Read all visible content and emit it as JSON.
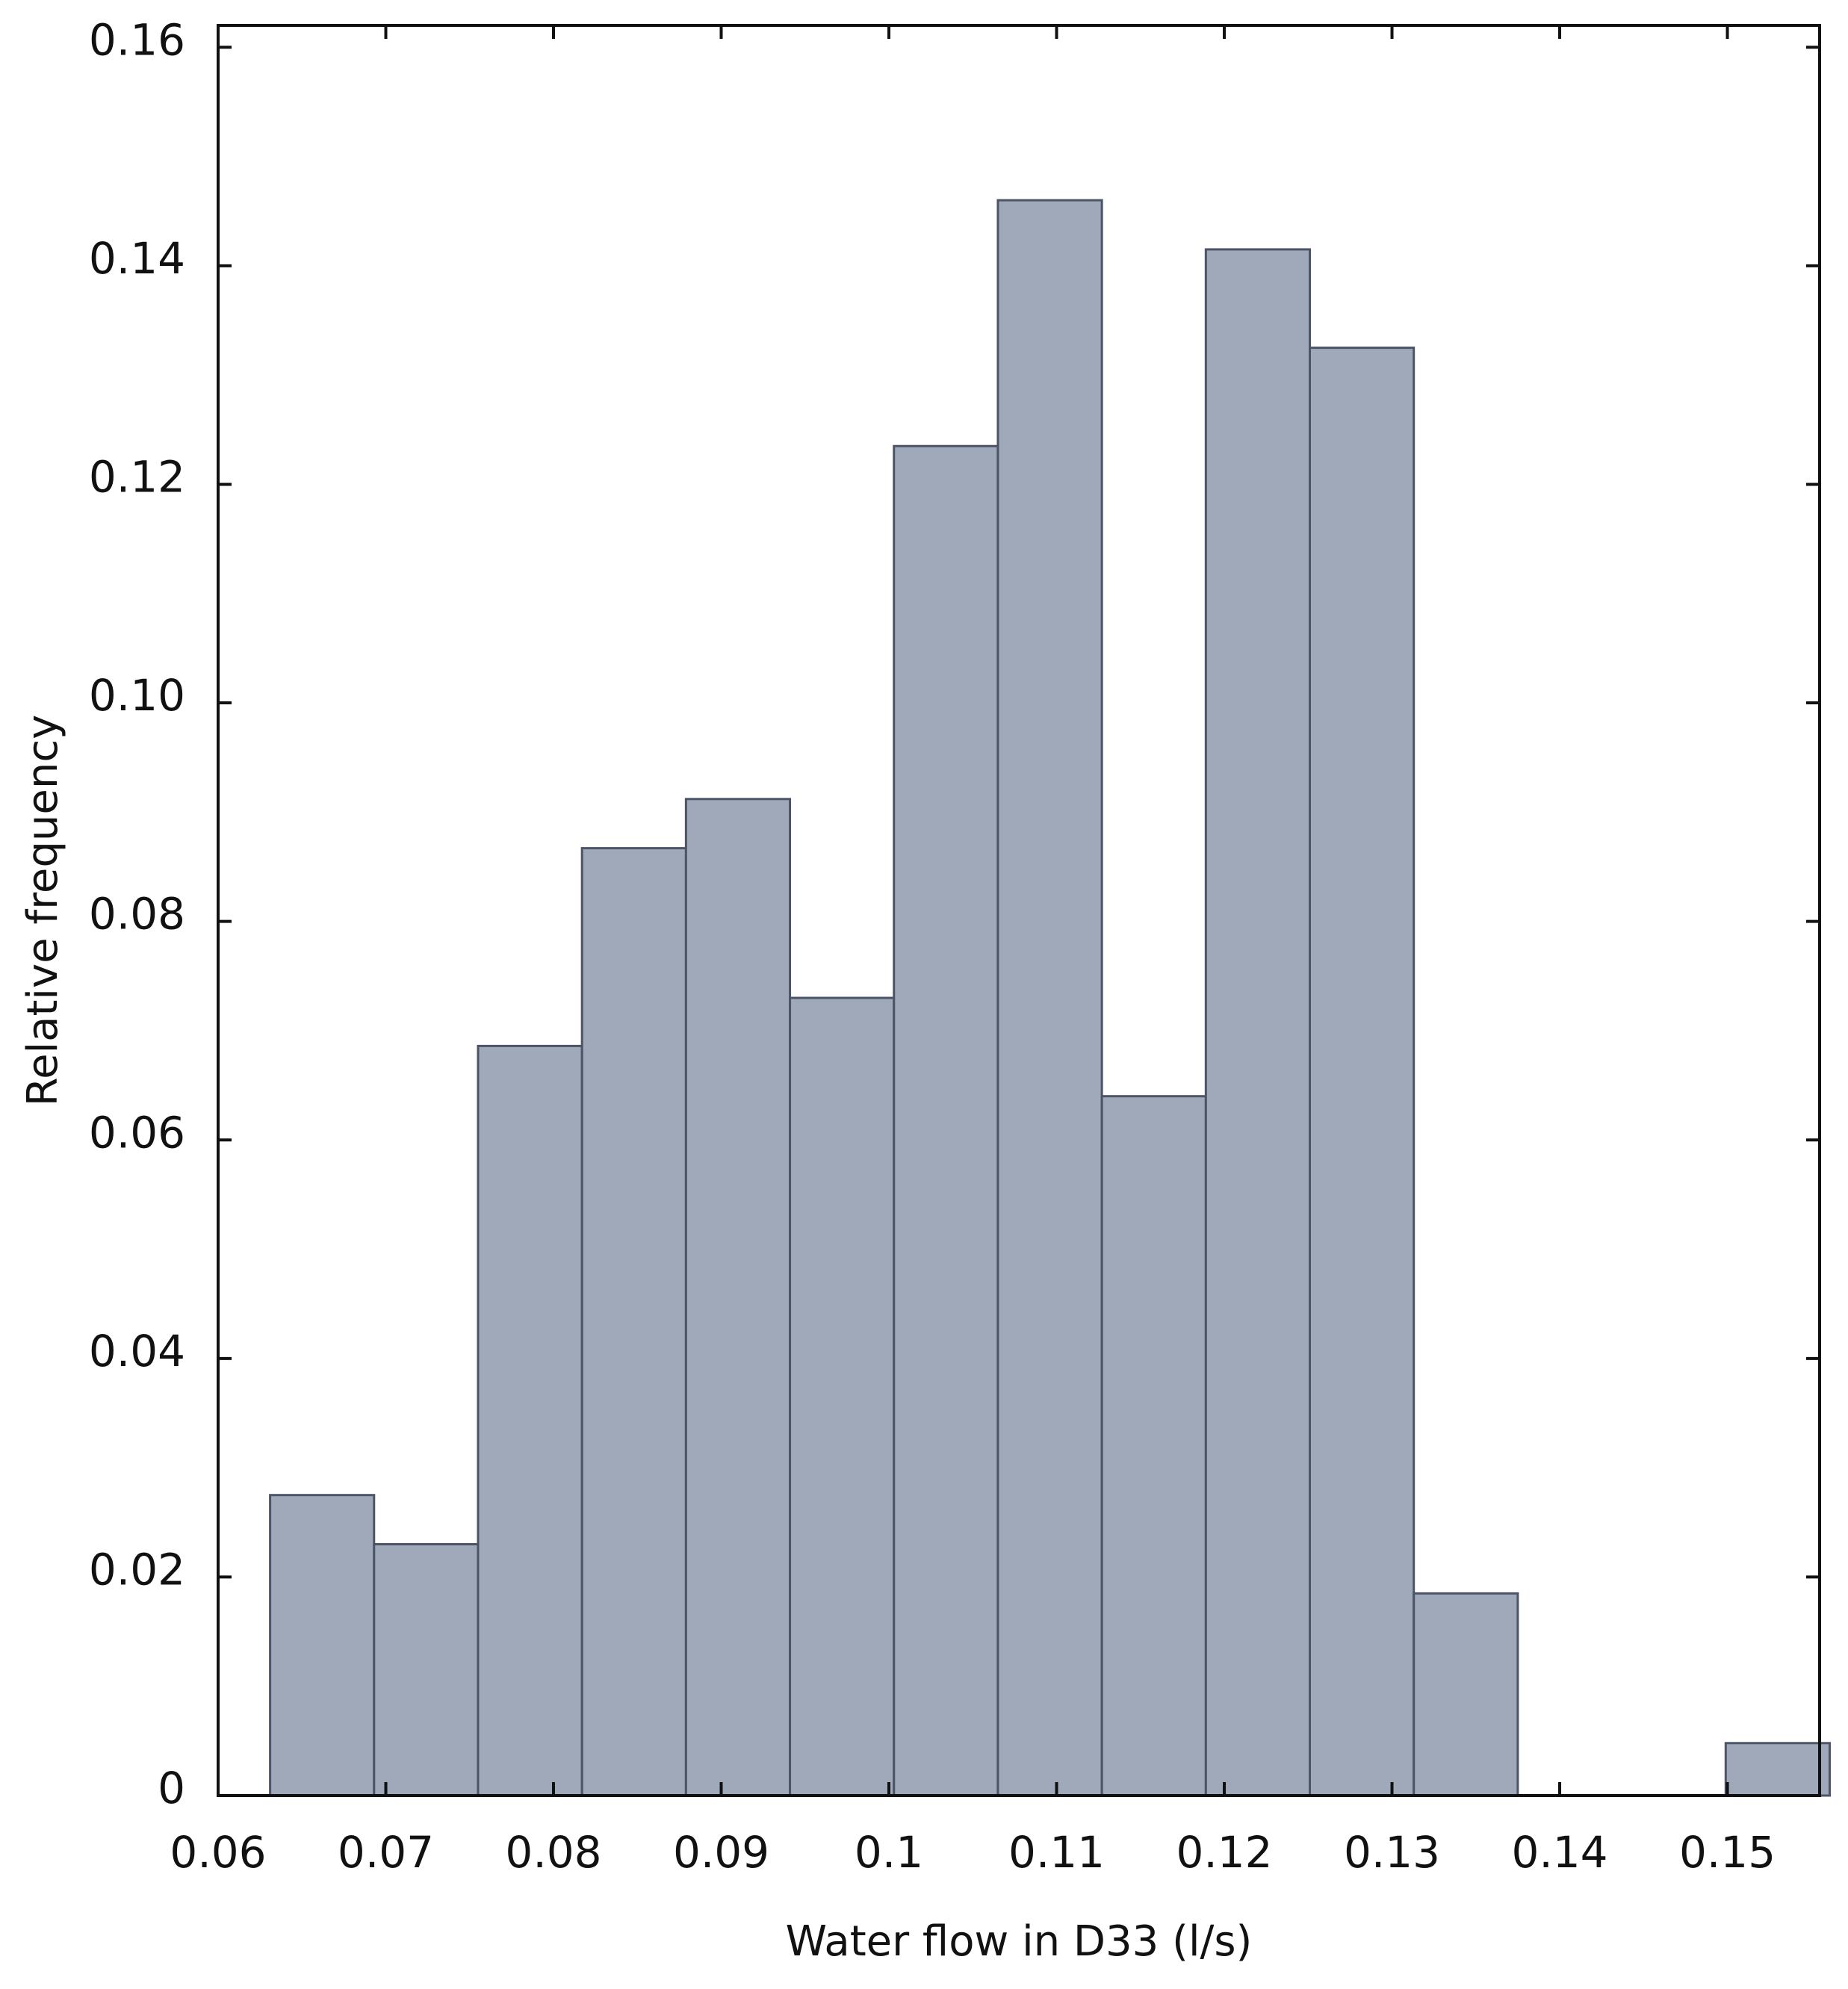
{
  "chart_data": {
    "type": "bar",
    "title": "",
    "xlabel": "Water flow in D33 (l/s)",
    "ylabel": "Relative frequency",
    "xlim": [
      0.06,
      0.1555
    ],
    "ylim": [
      0,
      0.162
    ],
    "x_ticks": [
      "0.06",
      "0.07",
      "0.08",
      "0.09",
      "0.1",
      "0.11",
      "0.12",
      "0.13",
      "0.14",
      "0.15"
    ],
    "x_tick_values": [
      0.06,
      0.07,
      0.08,
      0.09,
      0.1,
      0.11,
      0.12,
      0.13,
      0.14,
      0.15
    ],
    "y_ticks": [
      "0",
      "0.02",
      "0.04",
      "0.06",
      "0.08",
      "0.10",
      "0.12",
      "0.14",
      "0.16"
    ],
    "y_tick_values": [
      0,
      0.02,
      0.04,
      0.06,
      0.08,
      0.1,
      0.12,
      0.14,
      0.16
    ],
    "bin_width": 0.0062,
    "bins": [
      {
        "x0": 0.0631,
        "value": 0.0275
      },
      {
        "x0": 0.0693,
        "value": 0.023
      },
      {
        "x0": 0.0755,
        "value": 0.0686
      },
      {
        "x0": 0.0817,
        "value": 0.0867
      },
      {
        "x0": 0.0879,
        "value": 0.0912
      },
      {
        "x0": 0.0941,
        "value": 0.073
      },
      {
        "x0": 0.1003,
        "value": 0.1235
      },
      {
        "x0": 0.1065,
        "value": 0.146
      },
      {
        "x0": 0.1127,
        "value": 0.064
      },
      {
        "x0": 0.1189,
        "value": 0.1415
      },
      {
        "x0": 0.1251,
        "value": 0.1325
      },
      {
        "x0": 0.1313,
        "value": 0.0185
      },
      {
        "x0": 0.1375,
        "value": 0.0
      },
      {
        "x0": 0.1437,
        "value": 0.0
      },
      {
        "x0": 0.1499,
        "value": 0.0048
      }
    ],
    "bar_color": "#9fa9b9",
    "bar_edge_color": "#4c5566",
    "grid": false,
    "legend": "none"
  }
}
